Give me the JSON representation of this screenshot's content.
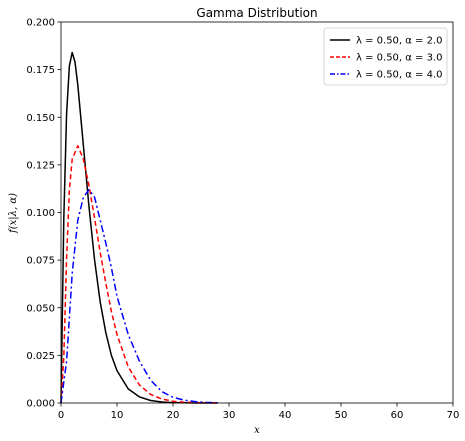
{
  "chart_data": {
    "type": "line",
    "title": "Gamma Distribution",
    "xlabel": "x",
    "ylabel": "f(x|λ, α)",
    "xlim": [
      0,
      70
    ],
    "ylim": [
      0,
      0.2
    ],
    "x_ticks": [
      "0",
      "10",
      "20",
      "30",
      "40",
      "50",
      "60",
      "70"
    ],
    "y_ticks": [
      "0.000",
      "0.025",
      "0.050",
      "0.075",
      "0.100",
      "0.125",
      "0.150",
      "0.175",
      "0.200"
    ],
    "grid": false,
    "legend_position": "top-right",
    "series": [
      {
        "name": "λ = 0.50,  α = 2.0",
        "color": "#000000",
        "style": "solid",
        "x": [
          0,
          0.5,
          1,
          1.5,
          2,
          2.5,
          3,
          4,
          5,
          6,
          7,
          8,
          9,
          10,
          12,
          14,
          16,
          18,
          20,
          22,
          24,
          26,
          28
        ],
        "y": [
          0,
          0.097,
          0.152,
          0.177,
          0.184,
          0.179,
          0.167,
          0.135,
          0.103,
          0.075,
          0.053,
          0.037,
          0.025,
          0.017,
          0.0074,
          0.0032,
          0.0013,
          0.0005,
          0.0002,
          0.0001,
          0.0,
          0.0,
          0.0
        ]
      },
      {
        "name": "λ = 0.50,  α = 3.0",
        "color": "#ff0000",
        "style": "dashed",
        "x": [
          0,
          0.5,
          1,
          1.5,
          2,
          3,
          4,
          5,
          6,
          7,
          8,
          9,
          10,
          12,
          14,
          16,
          18,
          20,
          22,
          24,
          26,
          28
        ],
        "y": [
          0,
          0.024,
          0.076,
          0.112,
          0.128,
          0.135,
          0.128,
          0.114,
          0.097,
          0.079,
          0.063,
          0.048,
          0.036,
          0.019,
          0.0095,
          0.0045,
          0.0021,
          0.0009,
          0.0004,
          0.0002,
          0.0001,
          0.0
        ]
      },
      {
        "name": "λ = 0.50,  α = 4.0",
        "color": "#0000ff",
        "style": "dashdot",
        "x": [
          0,
          1,
          2,
          3,
          4,
          5,
          6,
          7,
          8,
          9,
          10,
          12,
          14,
          16,
          18,
          20,
          22,
          24,
          26,
          28
        ],
        "y": [
          0,
          0.022,
          0.068,
          0.096,
          0.108,
          0.112,
          0.108,
          0.096,
          0.084,
          0.071,
          0.056,
          0.036,
          0.022,
          0.012,
          0.006,
          0.003,
          0.0015,
          0.0007,
          0.0003,
          0.0001
        ]
      }
    ]
  }
}
